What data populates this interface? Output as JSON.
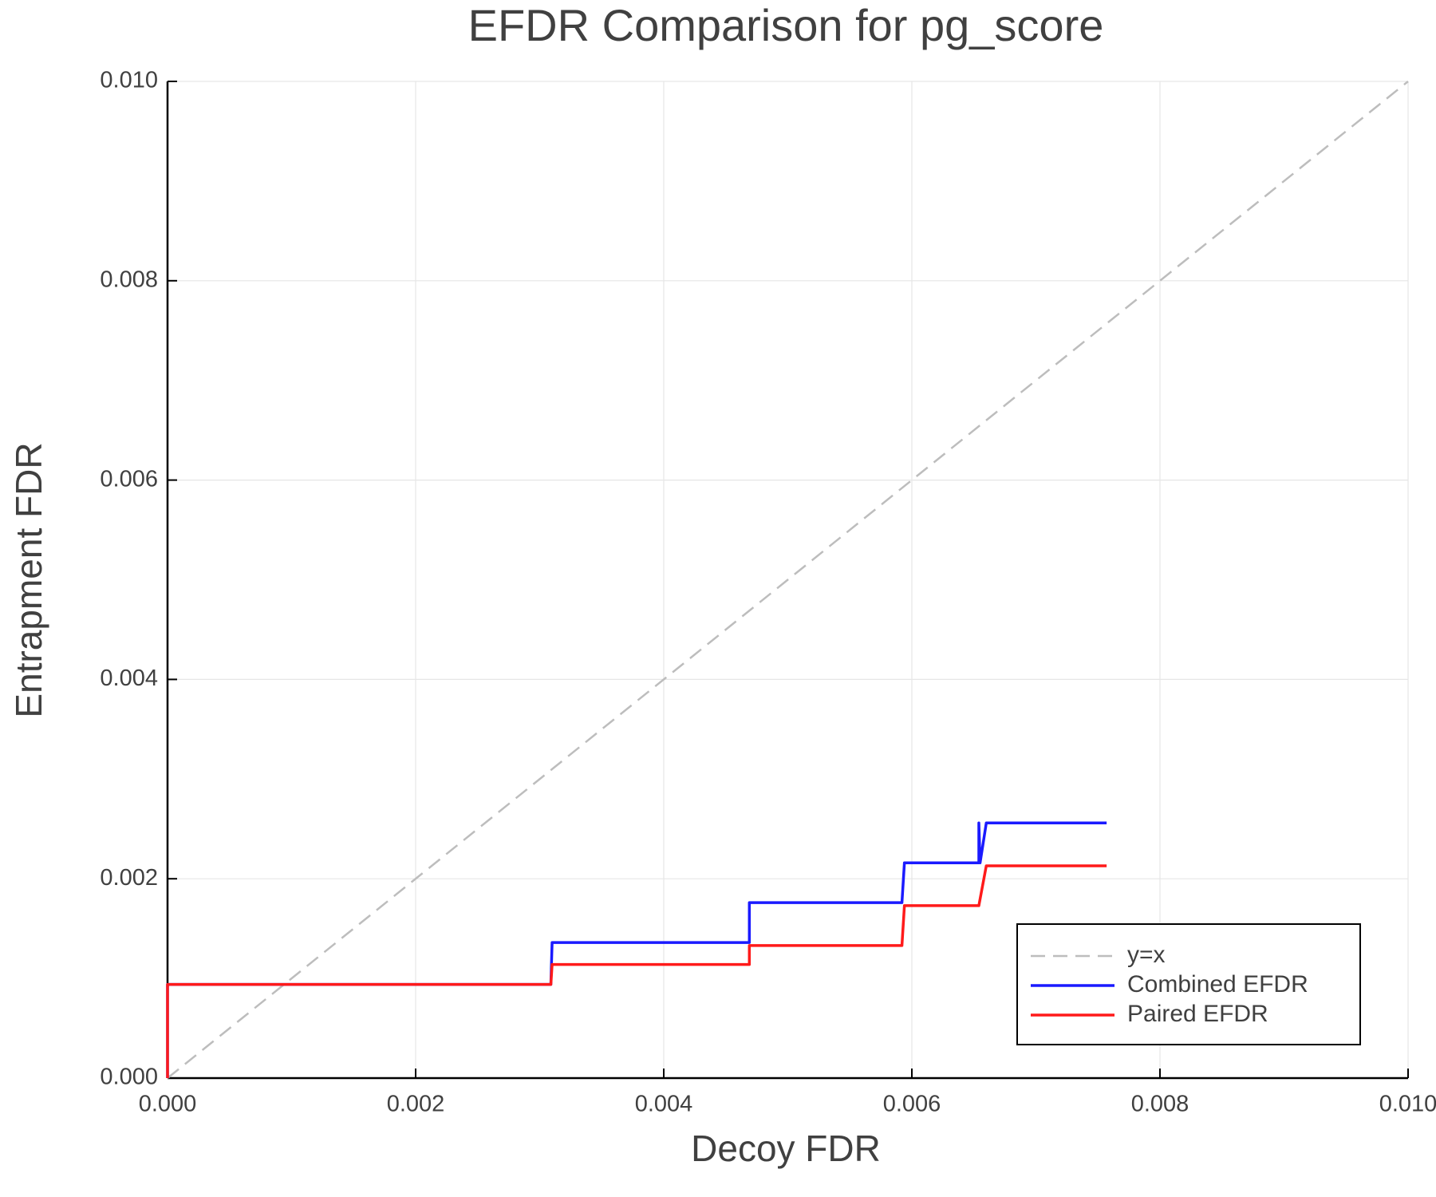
{
  "chart_data": {
    "type": "line",
    "title": "EFDR Comparison for pg_score",
    "x_label": "Decoy FDR",
    "y_label": "Entrapment FDR",
    "xlim": [
      0,
      0.01
    ],
    "ylim": [
      0,
      0.01
    ],
    "xticks": [
      {
        "value": 0,
        "label": "0.000"
      },
      {
        "value": 0.002,
        "label": "0.002"
      },
      {
        "value": 0.004,
        "label": "0.004"
      },
      {
        "value": 0.006,
        "label": "0.006"
      },
      {
        "value": 0.008,
        "label": "0.008"
      },
      {
        "value": 0.01,
        "label": "0.010"
      }
    ],
    "yticks": [
      {
        "value": 0,
        "label": "0.000"
      },
      {
        "value": 0.002,
        "label": "0.002"
      },
      {
        "value": 0.004,
        "label": "0.004"
      },
      {
        "value": 0.006,
        "label": "0.006"
      },
      {
        "value": 0.008,
        "label": "0.008"
      },
      {
        "value": 0.01,
        "label": "0.010"
      }
    ],
    "grid": true,
    "legend": "lower right",
    "series": [
      {
        "name": "y=x",
        "color": "#bdbdbd",
        "dash": "dashed",
        "x": [
          0,
          0.01
        ],
        "values": [
          0,
          0.01
        ]
      },
      {
        "name": "Combined EFDR",
        "color": "#1a1aff",
        "x": [
          0,
          0,
          0.00309,
          0.0031,
          0.00469,
          0.00469,
          0.00592,
          0.00594,
          0.00654,
          0.00654,
          0.00655,
          0.0066,
          0.00757
        ],
        "values": [
          0,
          0.00094,
          0.00094,
          0.00136,
          0.00136,
          0.00176,
          0.00176,
          0.00216,
          0.00216,
          0.00256,
          0.00216,
          0.00256,
          0.00256
        ]
      },
      {
        "name": "Paired EFDR",
        "color": "#ff1a1a",
        "x": [
          0,
          0,
          0.00309,
          0.0031,
          0.00469,
          0.00469,
          0.00592,
          0.00594,
          0.00654,
          0.0066,
          0.00757
        ],
        "values": [
          0,
          0.00094,
          0.00094,
          0.00114,
          0.00114,
          0.00133,
          0.00133,
          0.00173,
          0.00173,
          0.00213,
          0.00213
        ]
      }
    ]
  }
}
